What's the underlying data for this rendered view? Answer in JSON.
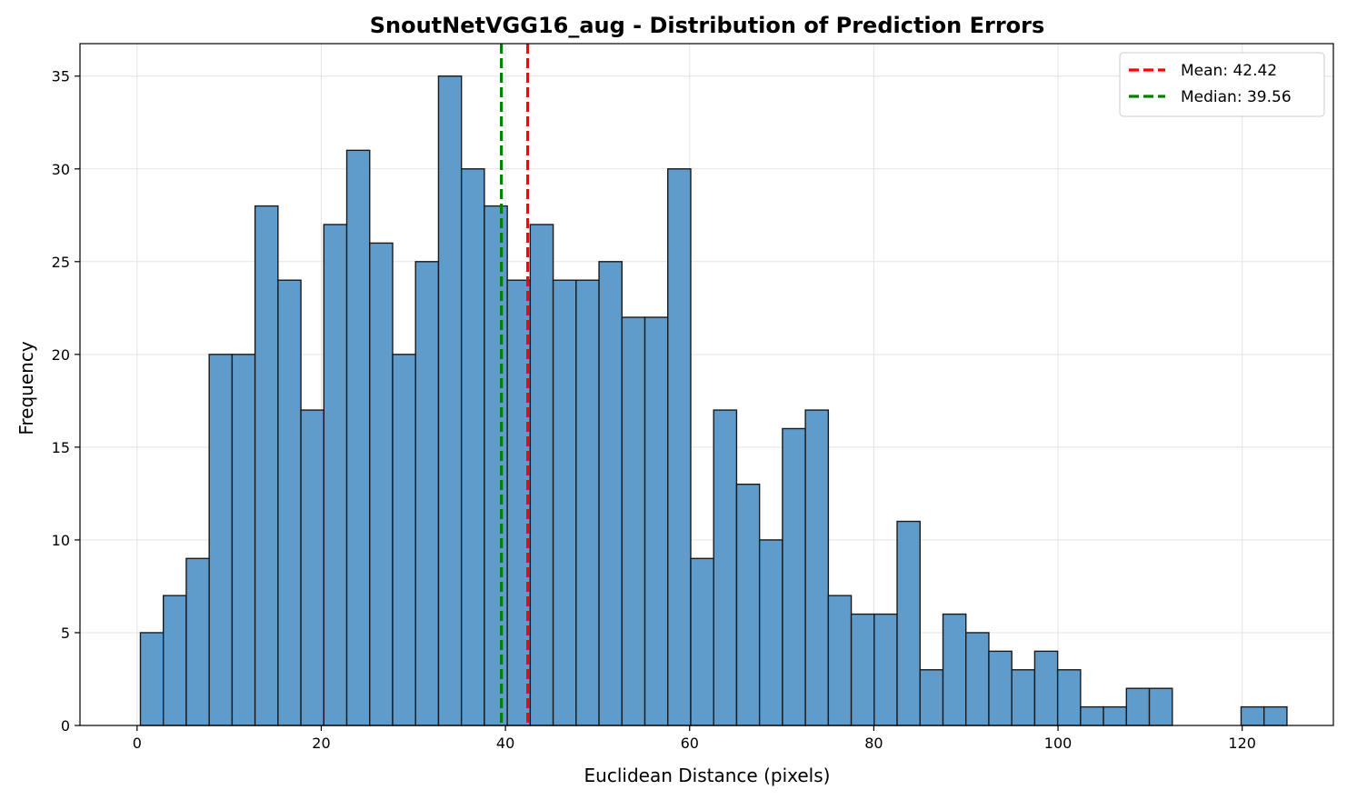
{
  "chart_data": {
    "type": "bar",
    "title": "SnoutNetVGG16_aug - Distribution of Prediction Errors",
    "xlabel": "Euclidean Distance (pixels)",
    "ylabel": "Frequency",
    "xlim": [
      -6.2,
      129.9
    ],
    "ylim": [
      0,
      36.75
    ],
    "xticks": [
      0,
      20,
      40,
      60,
      80,
      100,
      120
    ],
    "yticks": [
      0,
      5,
      10,
      15,
      20,
      25,
      30,
      35
    ],
    "grid": true,
    "legend_position": "top-right",
    "bin_edges": [
      0.36,
      2.85,
      5.34,
      7.83,
      10.32,
      12.81,
      15.3,
      17.79,
      20.28,
      22.77,
      25.26,
      27.75,
      30.24,
      32.73,
      35.22,
      37.71,
      40.2,
      42.69,
      45.18,
      47.67,
      50.16,
      52.65,
      55.14,
      57.63,
      60.12,
      62.61,
      65.1,
      67.59,
      70.08,
      72.57,
      75.06,
      77.55,
      80.04,
      82.53,
      85.02,
      87.51,
      90.0,
      92.49,
      94.98,
      97.47,
      99.96,
      102.45,
      104.94,
      107.43,
      109.92,
      112.41,
      114.9,
      117.39,
      119.88,
      122.37,
      124.86
    ],
    "counts": [
      5,
      7,
      9,
      20,
      20,
      28,
      24,
      17,
      27,
      31,
      26,
      20,
      25,
      35,
      30,
      28,
      24,
      27,
      24,
      24,
      25,
      22,
      22,
      30,
      9,
      17,
      13,
      10,
      16,
      17,
      7,
      6,
      6,
      11,
      3,
      6,
      5,
      4,
      3,
      4,
      3,
      1,
      1,
      2,
      2,
      0,
      0,
      0,
      1,
      1
    ],
    "bar_color": "#5f9ccb",
    "bar_edge_color": "#1a1a1a",
    "lines": [
      {
        "name": "Mean: 42.42",
        "x": 42.42,
        "color": "#ff0000"
      },
      {
        "name": "Median: 39.56",
        "x": 39.56,
        "color": "#008000"
      }
    ]
  }
}
